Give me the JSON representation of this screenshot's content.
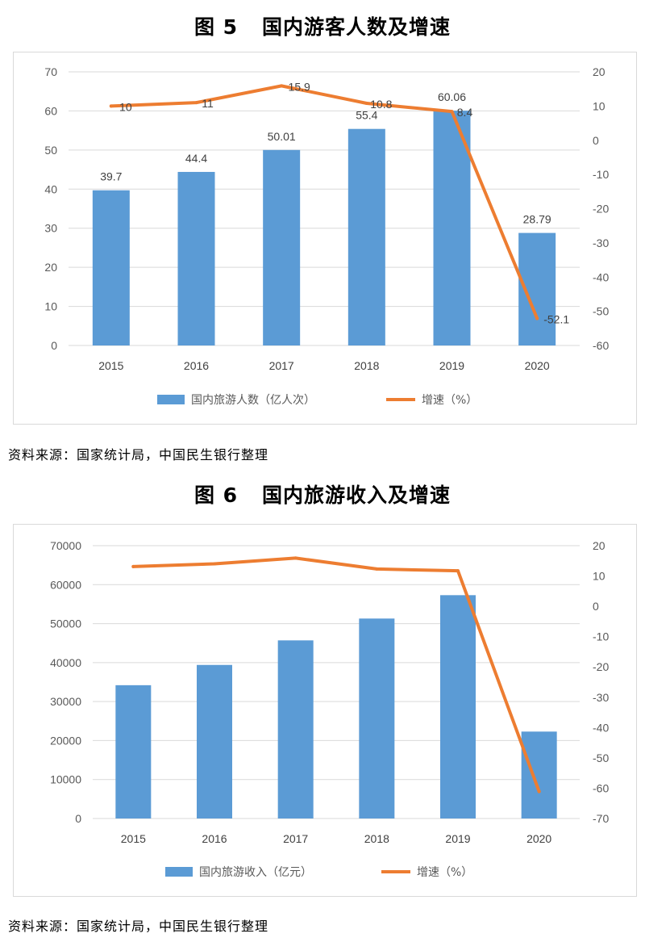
{
  "figures": [
    {
      "number": "图 5",
      "title": "国内游客人数及增速",
      "source": "资料来源：国家统计局，中国民生银行整理"
    },
    {
      "number": "图 6",
      "title": "国内旅游收入及增速",
      "source": "资料来源：国家统计局，中国民生银行整理"
    }
  ],
  "chart_data": [
    {
      "type": "bar",
      "categories": [
        "2015",
        "2016",
        "2017",
        "2018",
        "2019",
        "2020"
      ],
      "series": [
        {
          "name": "国内旅游人数（亿人次）",
          "type": "bar",
          "axis": "left",
          "values": [
            39.7,
            44.4,
            50.01,
            55.4,
            60.06,
            28.79
          ],
          "labels": [
            "39.7",
            "44.4",
            "50.01",
            "55.4",
            "60.06",
            "28.79"
          ],
          "color": "#5b9bd5"
        },
        {
          "name": "增速（%）",
          "type": "line",
          "axis": "right",
          "values": [
            10,
            11,
            15.9,
            10.8,
            8.4,
            -52.1
          ],
          "labels": [
            "10",
            "11",
            "15.9",
            "10.8",
            "8.4",
            "-52.1"
          ],
          "color": "#ed7d31"
        }
      ],
      "y_left": {
        "min": 0,
        "max": 70,
        "step": 10,
        "ticks": [
          "0",
          "10",
          "20",
          "30",
          "40",
          "50",
          "60",
          "70"
        ]
      },
      "y_right": {
        "min": -60,
        "max": 20,
        "step": 10,
        "ticks": [
          "-60",
          "-50",
          "-40",
          "-30",
          "-20",
          "-10",
          "0",
          "10",
          "20"
        ]
      },
      "grid": true,
      "legend": "bottom"
    },
    {
      "type": "bar",
      "categories": [
        "2015",
        "2016",
        "2017",
        "2018",
        "2019",
        "2020"
      ],
      "series": [
        {
          "name": "国内旅游收入（亿元）",
          "type": "bar",
          "axis": "left",
          "values": [
            34200,
            39400,
            45700,
            51300,
            57300,
            22300
          ],
          "color": "#5b9bd5"
        },
        {
          "name": "增速（%）",
          "type": "line",
          "axis": "right",
          "values": [
            13.1,
            14.0,
            15.9,
            12.3,
            11.7,
            -61.1
          ],
          "color": "#ed7d31"
        }
      ],
      "y_left": {
        "min": 0,
        "max": 70000,
        "step": 10000,
        "ticks": [
          "0",
          "10000",
          "20000",
          "30000",
          "40000",
          "50000",
          "60000",
          "70000"
        ]
      },
      "y_right": {
        "min": -70,
        "max": 20,
        "step": 10,
        "ticks": [
          "-70",
          "-60",
          "-50",
          "-40",
          "-30",
          "-20",
          "-10",
          "0",
          "10",
          "20"
        ]
      },
      "grid": true,
      "legend": "bottom"
    }
  ]
}
